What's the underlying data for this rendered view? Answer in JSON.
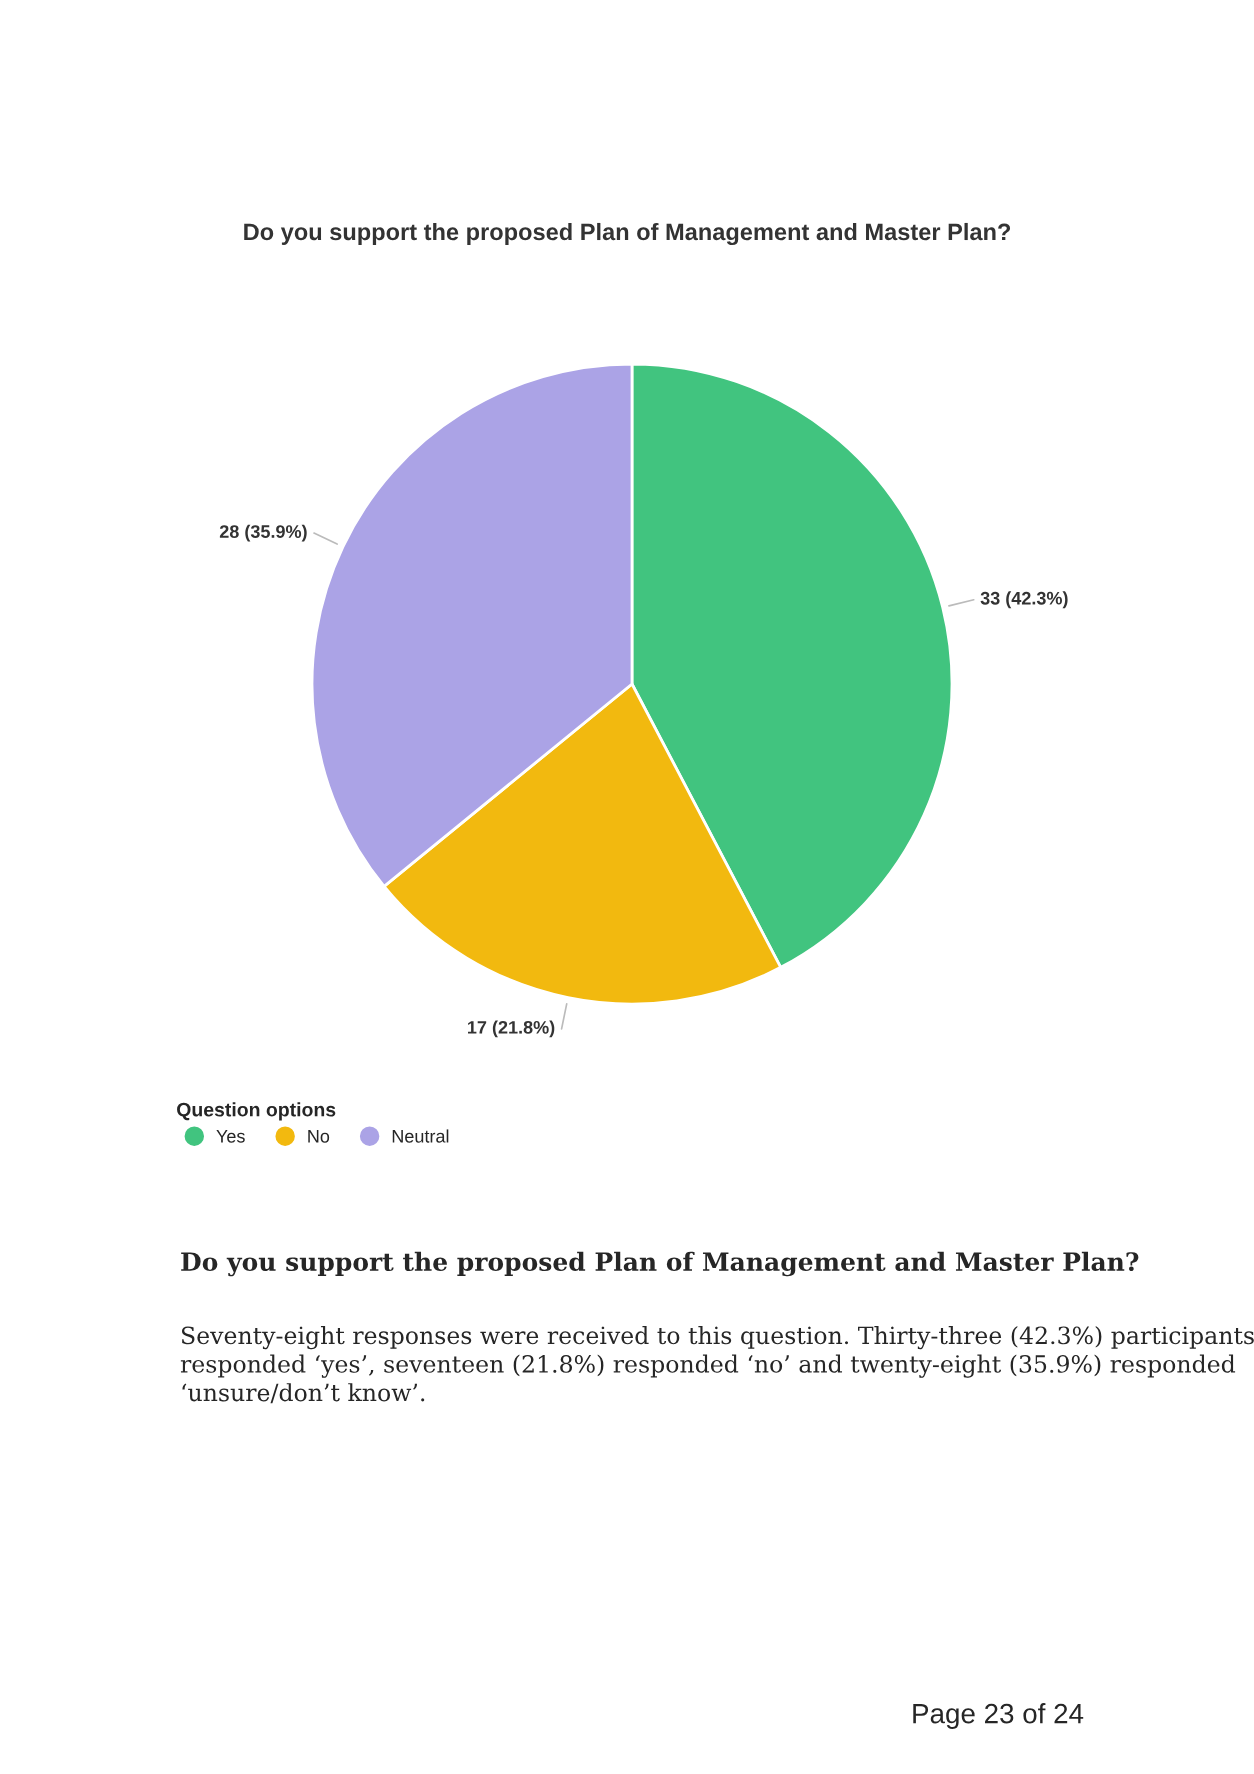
{
  "chart_data": {
    "type": "pie",
    "title": "Do you support the proposed Plan of Management and Master Plan?",
    "categories": [
      "Yes",
      "No",
      "Neutral"
    ],
    "values": [
      33,
      17,
      28
    ],
    "colors": [
      "#41c47f",
      "#f2b90f",
      "#aba3e6"
    ],
    "value_labels": [
      "33 (42.3%)",
      "17 (21.8%)",
      "28 (35.9%)"
    ],
    "legend": "bottom left",
    "legend_title": "Question options",
    "annotations": [
      "Do you support the proposed Plan of Management and Master Plan?",
      "Seventy-eight responses were received to this question. Thirty-three (42.3%) participants\nresponded ‘yes’, seventeen (21.8%) responded ‘no’ and twenty-eight (35.9%) responded\n‘unsure/don’t know’.",
      "Page 23 of 24"
    ]
  }
}
